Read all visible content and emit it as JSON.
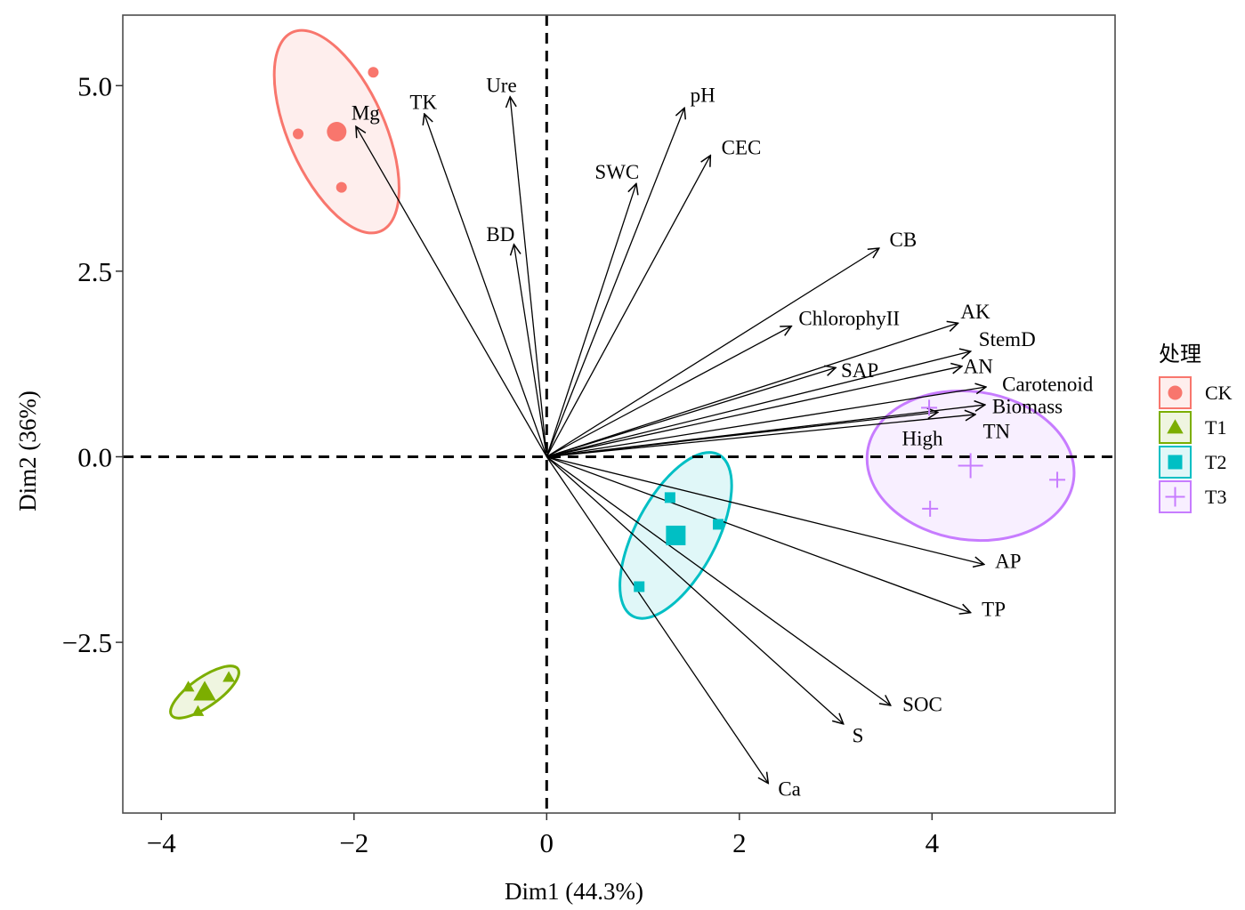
{
  "chart_data": {
    "type": "scatter",
    "subtype": "PCA biplot",
    "xlabel": "Dim1 (44.3%)",
    "ylabel": "Dim2 (36%)",
    "xlim": [
      -4.4,
      5.9
    ],
    "ylim": [
      -4.8,
      5.95
    ],
    "x_ticks": [
      {
        "value": -4,
        "label": "−4"
      },
      {
        "value": -2,
        "label": "−2"
      },
      {
        "value": 0,
        "label": "0"
      },
      {
        "value": 2,
        "label": "2"
      },
      {
        "value": 4,
        "label": "4"
      }
    ],
    "y_ticks": [
      {
        "value": 5,
        "label": "5.0"
      },
      {
        "value": 2.5,
        "label": "2.5"
      },
      {
        "value": 0,
        "label": "0.0"
      },
      {
        "value": -2.5,
        "label": "−2.5"
      }
    ],
    "grid": false,
    "reference_lines": {
      "x": 0,
      "y": 0,
      "style": "dashed"
    },
    "legend": {
      "title": "处理",
      "position": "right",
      "entries": [
        {
          "label": "CK",
          "shape": "circle",
          "color": "#F8766D"
        },
        {
          "label": "T1",
          "shape": "triangle",
          "color": "#7CAE00"
        },
        {
          "label": "T2",
          "shape": "square",
          "color": "#00BFC4"
        },
        {
          "label": "T3",
          "shape": "cross",
          "color": "#C77CFF"
        }
      ]
    },
    "groups": [
      {
        "name": "CK",
        "shape": "circle",
        "color": "#F8766D",
        "points": [
          [
            -1.8,
            5.18
          ],
          [
            -2.58,
            4.35
          ],
          [
            -2.13,
            3.63
          ]
        ],
        "centroid": [
          -2.18,
          4.38
        ],
        "ellipse": {
          "cx": -2.18,
          "cy": 4.38,
          "rx": 1.13,
          "ry": 0.5,
          "angle": 114
        }
      },
      {
        "name": "T1",
        "shape": "triangle",
        "color": "#7CAE00",
        "points": [
          [
            -3.72,
            -3.1
          ],
          [
            -3.3,
            -2.97
          ],
          [
            -3.62,
            -3.43
          ]
        ],
        "centroid": [
          -3.55,
          -3.17
        ],
        "ellipse": {
          "cx": -3.55,
          "cy": -3.17,
          "rx": 0.42,
          "ry": 0.15,
          "angle": 35
        }
      },
      {
        "name": "T2",
        "shape": "square",
        "color": "#00BFC4",
        "points": [
          [
            1.28,
            -0.55
          ],
          [
            1.78,
            -0.91
          ],
          [
            0.96,
            -1.75
          ]
        ],
        "centroid": [
          1.34,
          -1.06
        ],
        "ellipse": {
          "cx": 1.34,
          "cy": -1.06,
          "rx": 0.95,
          "ry": 0.42,
          "angle": 62
        }
      },
      {
        "name": "T3",
        "shape": "cross",
        "color": "#C77CFF",
        "points": [
          [
            3.97,
            0.66
          ],
          [
            5.3,
            -0.31
          ],
          [
            3.98,
            -0.7
          ]
        ],
        "centroid": [
          4.4,
          -0.12
        ],
        "ellipse": {
          "cx": 4.4,
          "cy": -0.12,
          "rx": 1.08,
          "ry": 0.77,
          "angle": -8
        }
      }
    ],
    "variables": [
      {
        "name": "Mg",
        "x": -1.98,
        "y": 4.45,
        "label_x": -1.88,
        "label_y": 4.64
      },
      {
        "name": "TK",
        "x": -1.27,
        "y": 4.62,
        "label_x": -1.28,
        "label_y": 4.78
      },
      {
        "name": "Ure",
        "x": -0.38,
        "y": 4.85,
        "label_x": -0.47,
        "label_y": 5.01
      },
      {
        "name": "pH",
        "x": 1.43,
        "y": 4.7,
        "label_x": 1.62,
        "label_y": 4.88
      },
      {
        "name": "CEC",
        "x": 1.7,
        "y": 4.06,
        "label_x": 2.02,
        "label_y": 4.17
      },
      {
        "name": "SWC",
        "x": 0.93,
        "y": 3.68,
        "label_x": 0.73,
        "label_y": 3.84
      },
      {
        "name": "BD",
        "x": -0.34,
        "y": 2.86,
        "label_x": -0.48,
        "label_y": 3.0
      },
      {
        "name": "CB",
        "x": 3.45,
        "y": 2.81,
        "label_x": 3.7,
        "label_y": 2.93
      },
      {
        "name": "ChlorophyII",
        "x": 2.54,
        "y": 1.76,
        "label_x": 3.14,
        "label_y": 1.87
      },
      {
        "name": "AK",
        "x": 4.27,
        "y": 1.8,
        "label_x": 4.45,
        "label_y": 1.96
      },
      {
        "name": "StemD",
        "x": 4.4,
        "y": 1.42,
        "label_x": 4.78,
        "label_y": 1.59
      },
      {
        "name": "AN",
        "x": 4.31,
        "y": 1.22,
        "label_x": 4.48,
        "label_y": 1.22
      },
      {
        "name": "SAP",
        "x": 3.0,
        "y": 1.2,
        "label_x": 3.25,
        "label_y": 1.17
      },
      {
        "name": "Carotenoid",
        "x": 4.56,
        "y": 0.94,
        "label_x": 5.2,
        "label_y": 0.98
      },
      {
        "name": "Biomass",
        "x": 4.55,
        "y": 0.7,
        "label_x": 4.99,
        "label_y": 0.68
      },
      {
        "name": "High",
        "x": 4.06,
        "y": 0.6,
        "label_x": 3.9,
        "label_y": 0.25
      },
      {
        "name": "TN",
        "x": 4.45,
        "y": 0.57,
        "label_x": 4.67,
        "label_y": 0.35
      },
      {
        "name": "AP",
        "x": 4.54,
        "y": -1.45,
        "label_x": 4.79,
        "label_y": -1.4
      },
      {
        "name": "TP",
        "x": 4.4,
        "y": -2.1,
        "label_x": 4.64,
        "label_y": -2.05
      },
      {
        "name": "SOC",
        "x": 3.57,
        "y": -3.35,
        "label_x": 3.9,
        "label_y": -3.33
      },
      {
        "name": "S",
        "x": 3.08,
        "y": -3.6,
        "label_x": 3.23,
        "label_y": -3.75
      },
      {
        "name": "Ca",
        "x": 2.3,
        "y": -4.4,
        "label_x": 2.52,
        "label_y": -4.47
      }
    ]
  }
}
